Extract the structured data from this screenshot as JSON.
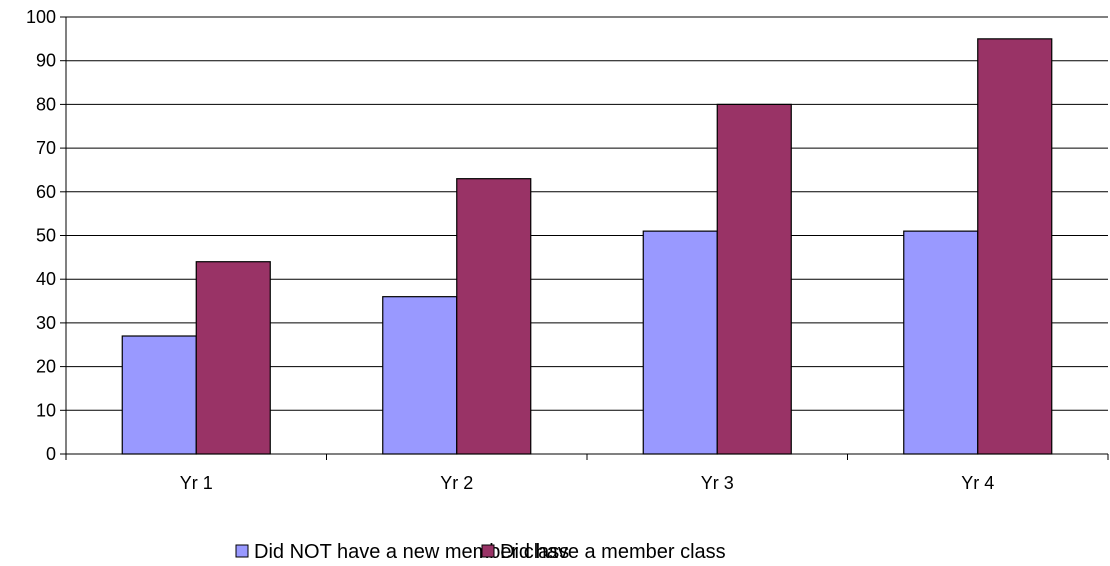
{
  "chart_data": {
    "type": "bar",
    "categories": [
      "Yr 1",
      "Yr 2",
      "Yr 3",
      "Yr 4"
    ],
    "series": [
      {
        "name": "Did NOT have a new member class",
        "values": [
          27,
          36,
          51,
          51
        ],
        "color": "#9999ff"
      },
      {
        "name": "Did have a member class",
        "values": [
          44,
          63,
          80,
          95
        ],
        "color": "#993366"
      }
    ],
    "ylim": [
      0,
      100
    ],
    "yticks": [
      0,
      10,
      20,
      30,
      40,
      50,
      60,
      70,
      80,
      90,
      100
    ],
    "grid": true,
    "legend": "bottom"
  }
}
